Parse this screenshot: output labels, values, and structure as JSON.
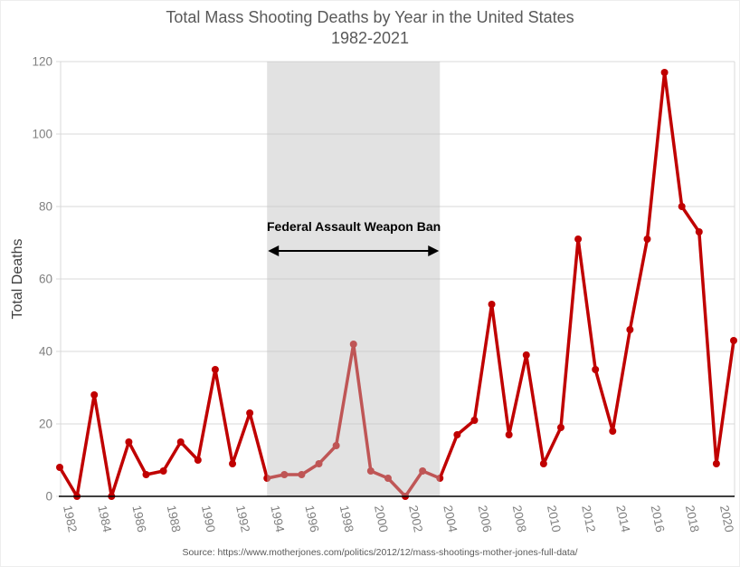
{
  "title": {
    "line1": "Total Mass Shooting Deaths by Year in the United States",
    "line2": "1982-2021"
  },
  "y_axis": {
    "label": "Total Deaths",
    "ticks": [
      "0",
      "20",
      "40",
      "60",
      "80",
      "100",
      "120"
    ]
  },
  "x_axis": {
    "tick_labels": [
      "1982",
      "1984",
      "1986",
      "1988",
      "1990",
      "1992",
      "1994",
      "1996",
      "1998",
      "2000",
      "2002",
      "2004",
      "2006",
      "2008",
      "2010",
      "2012",
      "2014",
      "2016",
      "2018",
      "2020"
    ]
  },
  "annotation": {
    "label": "Federal Assault Weapon Ban",
    "band_start_year": 1994,
    "band_end_year": 2004
  },
  "source": "Source: https://www.motherjones.com/politics/2012/12/mass-shootings-mother-jones-full-data/",
  "colors": {
    "line": "#C00000",
    "marker": "#C00000",
    "band_fill": "#BFBFBF",
    "grid": "#D9D9D9",
    "axis": "#000000",
    "tick_text": "#808080",
    "title_text": "#595959",
    "annotation_text": "#000000"
  },
  "chart_data": {
    "type": "line",
    "title": "Total Mass Shooting Deaths by Year in the United States 1982-2021",
    "xlabel": "",
    "ylabel": "Total Deaths",
    "ylim": [
      0,
      120
    ],
    "y_tick_step": 20,
    "grid": "horizontal",
    "legend": "none",
    "x": [
      1982,
      1983,
      1984,
      1985,
      1986,
      1987,
      1988,
      1989,
      1990,
      1991,
      1992,
      1993,
      1994,
      1995,
      1996,
      1997,
      1998,
      1999,
      2000,
      2001,
      2002,
      2003,
      2004,
      2005,
      2006,
      2007,
      2008,
      2009,
      2010,
      2011,
      2012,
      2013,
      2014,
      2015,
      2016,
      2017,
      2018,
      2019,
      2020,
      2021
    ],
    "series": [
      {
        "name": "Total Deaths",
        "values": [
          8,
          0,
          28,
          0,
          15,
          6,
          7,
          15,
          10,
          35,
          9,
          23,
          5,
          6,
          6,
          9,
          14,
          42,
          7,
          5,
          0,
          7,
          5,
          17,
          21,
          53,
          17,
          39,
          9,
          19,
          71,
          35,
          18,
          46,
          71,
          117,
          80,
          73,
          9,
          43
        ]
      }
    ],
    "annotations": [
      {
        "type": "shaded-band-with-arrow",
        "text": "Federal Assault Weapon Ban",
        "x_start": 1994,
        "x_end": 2004
      }
    ]
  }
}
